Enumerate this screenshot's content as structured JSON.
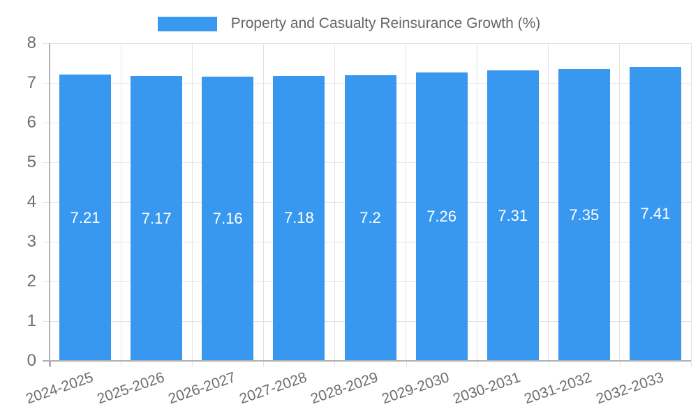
{
  "chart_data": {
    "type": "bar",
    "title": "Property and Casualty Reinsurance Growth (%)",
    "categories": [
      "2024-2025",
      "2025-2026",
      "2026-2027",
      "2027-2028",
      "2028-2029",
      "2029-2030",
      "2030-2031",
      "2031-2032",
      "2032-2033"
    ],
    "values": [
      7.21,
      7.17,
      7.16,
      7.18,
      7.2,
      7.26,
      7.31,
      7.35,
      7.41
    ],
    "value_labels": [
      "7.21",
      "7.17",
      "7.16",
      "7.18",
      "7.2",
      "7.26",
      "7.31",
      "7.35",
      "7.41"
    ],
    "xlabel": "",
    "ylabel": "",
    "ylim": [
      0,
      8
    ],
    "y_ticks": [
      0,
      1,
      2,
      3,
      4,
      5,
      6,
      7,
      8
    ],
    "grid": true,
    "legend_position": "top",
    "colors": {
      "bar": "#3898f0",
      "value_label": "#ffffff",
      "grid": "#e3e3e3",
      "axis": "#b1b1b1",
      "tick_text": "#6e6e6e",
      "legend_text": "#666666",
      "background": "#ffffff"
    }
  }
}
